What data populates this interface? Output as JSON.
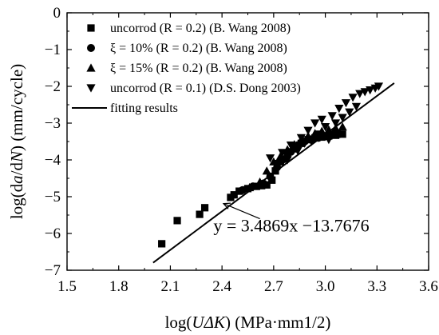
{
  "chart_data": {
    "type": "scatter",
    "xlabel": "log(UΔK) (MPa·mm1/2)",
    "ylabel": "log(da/dN) (mm/cycle)",
    "xlim": [
      1.5,
      3.6
    ],
    "ylim": [
      -7,
      0
    ],
    "x_ticks": [
      "1.5",
      "1.8",
      "2.1",
      "2.4",
      "2.7",
      "3.0",
      "3.3",
      "3.6"
    ],
    "y_ticks": [
      "0",
      "−1",
      "−2",
      "−3",
      "−4",
      "−5",
      "−6",
      "−7"
    ],
    "grid": false,
    "legend_position": "top-left",
    "series": [
      {
        "name": "uncorrod (R = 0.2) (B. Wang 2008)",
        "marker": "square",
        "color": "#000000",
        "points": [
          [
            2.05,
            -6.28
          ],
          [
            2.14,
            -5.65
          ],
          [
            2.27,
            -5.48
          ],
          [
            2.3,
            -5.3
          ],
          [
            2.45,
            -5.02
          ],
          [
            2.47,
            -4.95
          ],
          [
            2.5,
            -4.85
          ],
          [
            2.55,
            -4.78
          ],
          [
            2.6,
            -4.72
          ],
          [
            2.63,
            -4.7
          ],
          [
            2.66,
            -4.68
          ],
          [
            2.69,
            -4.55
          ],
          [
            2.71,
            -4.3
          ],
          [
            2.74,
            -4.05
          ],
          [
            2.78,
            -3.85
          ],
          [
            2.82,
            -3.7
          ],
          [
            2.86,
            -3.55
          ],
          [
            2.9,
            -3.45
          ],
          [
            2.94,
            -3.4
          ],
          [
            2.98,
            -3.38
          ],
          [
            3.02,
            -3.35
          ],
          [
            3.06,
            -3.33
          ],
          [
            3.1,
            -3.3
          ]
        ]
      },
      {
        "name": "ξ = 10% (R = 0.2) (B. Wang 2008)",
        "marker": "circle",
        "color": "#000000",
        "points": [
          [
            2.52,
            -4.82
          ],
          [
            2.58,
            -4.72
          ],
          [
            2.64,
            -4.64
          ],
          [
            2.68,
            -4.45
          ],
          [
            2.72,
            -4.2
          ],
          [
            2.76,
            -3.98
          ],
          [
            2.8,
            -3.78
          ],
          [
            2.84,
            -3.6
          ],
          [
            2.88,
            -3.5
          ],
          [
            2.92,
            -3.44
          ],
          [
            2.96,
            -3.4
          ],
          [
            3.0,
            -3.36
          ],
          [
            3.04,
            -3.32
          ],
          [
            3.08,
            -3.3
          ]
        ]
      },
      {
        "name": "ξ = 15% (R = 0.2) (B. Wang 2008)",
        "marker": "triangle-up",
        "color": "#000000",
        "points": [
          [
            2.56,
            -4.75
          ],
          [
            2.62,
            -4.6
          ],
          [
            2.66,
            -4.3
          ],
          [
            2.7,
            -4.05
          ],
          [
            2.74,
            -3.9
          ],
          [
            2.78,
            -3.72
          ],
          [
            2.82,
            -3.58
          ],
          [
            2.86,
            -3.45
          ],
          [
            2.9,
            -3.35
          ],
          [
            2.94,
            -3.28
          ],
          [
            2.98,
            -3.22
          ],
          [
            3.02,
            -3.18
          ],
          [
            3.06,
            -3.14
          ],
          [
            3.1,
            -3.1
          ]
        ]
      },
      {
        "name": "uncorrod (R = 0.1) (D.S. Dong 2003)",
        "marker": "triangle-down",
        "color": "#000000",
        "points": [
          [
            2.68,
            -3.95
          ],
          [
            2.72,
            -4.1
          ],
          [
            2.75,
            -3.8
          ],
          [
            2.78,
            -4.0
          ],
          [
            2.8,
            -3.6
          ],
          [
            2.84,
            -3.75
          ],
          [
            2.86,
            -3.4
          ],
          [
            2.88,
            -3.55
          ],
          [
            2.9,
            -3.2
          ],
          [
            2.92,
            -3.5
          ],
          [
            2.94,
            -3.0
          ],
          [
            2.96,
            -3.3
          ],
          [
            2.98,
            -2.9
          ],
          [
            3.0,
            -3.1
          ],
          [
            3.02,
            -3.45
          ],
          [
            3.04,
            -2.8
          ],
          [
            3.06,
            -3.0
          ],
          [
            3.08,
            -2.6
          ],
          [
            3.1,
            -2.85
          ],
          [
            3.12,
            -2.45
          ],
          [
            3.14,
            -2.7
          ],
          [
            3.16,
            -2.3
          ],
          [
            3.18,
            -2.55
          ],
          [
            3.2,
            -2.2
          ],
          [
            3.23,
            -2.15
          ],
          [
            3.26,
            -2.1
          ],
          [
            3.29,
            -2.05
          ],
          [
            3.31,
            -2.0
          ]
        ]
      }
    ],
    "fit_line": {
      "name": "fitting results",
      "slope": 3.4869,
      "intercept": -13.7676,
      "x_range": [
        2.0,
        3.4
      ],
      "color": "#000000"
    },
    "annotations": [
      {
        "text": "y = 3.4869x −13.7676",
        "points_to": [
          2.39,
          -5.1
        ]
      }
    ]
  }
}
